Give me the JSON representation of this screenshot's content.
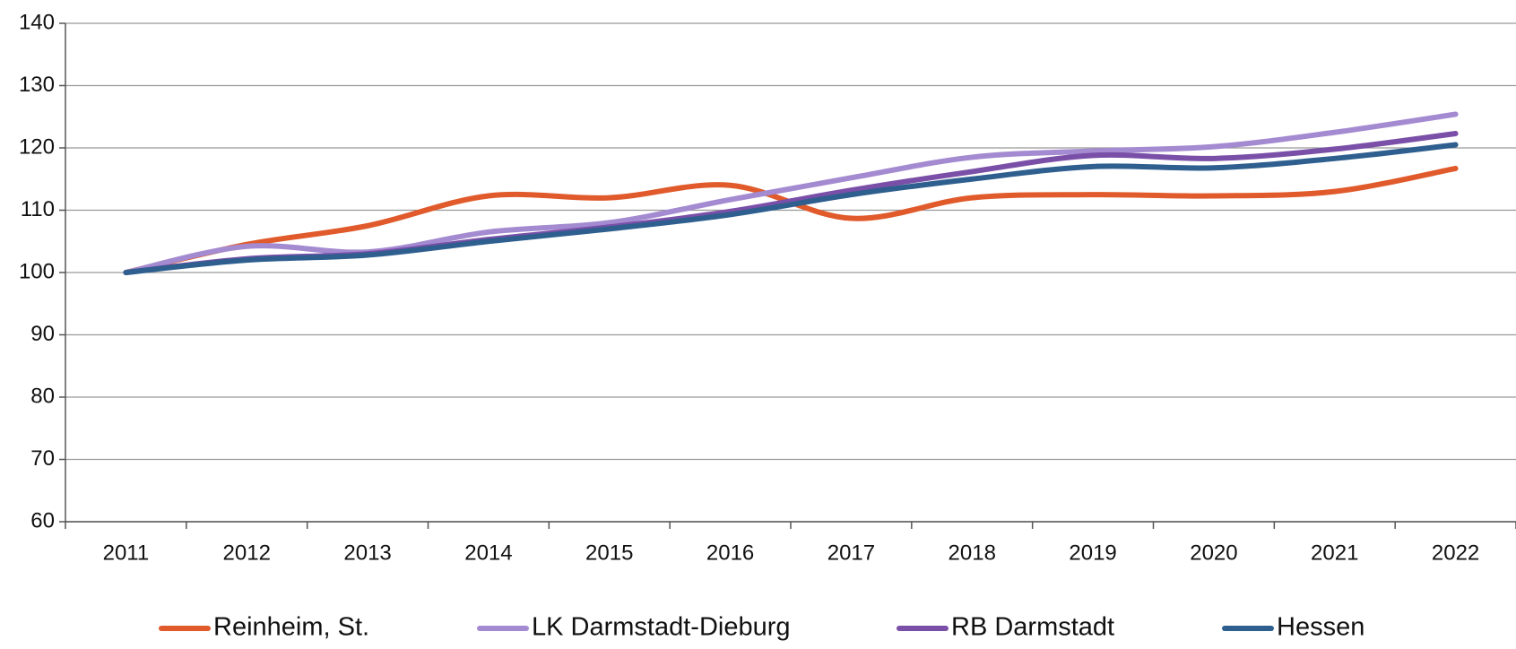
{
  "chart_data": {
    "type": "line",
    "categories": [
      "2011",
      "2012",
      "2013",
      "2014",
      "2015",
      "2016",
      "2017",
      "2018",
      "2019",
      "2020",
      "2021",
      "2022"
    ],
    "series": [
      {
        "name": "Reinheim, St.",
        "color": "#e05a2b",
        "values": [
          100,
          104.5,
          107.5,
          112.3,
          112,
          114,
          108.7,
          112,
          112.5,
          112.3,
          113,
          116.7
        ]
      },
      {
        "name": "LK Darmstadt-Dieburg",
        "color": "#a48ad0",
        "values": [
          100,
          104.2,
          103.3,
          106.5,
          108,
          111.7,
          115.2,
          118.5,
          119.5,
          120.2,
          122.5,
          125.4
        ]
      },
      {
        "name": "RB Darmstadt",
        "color": "#7a4fa8",
        "values": [
          100,
          102.2,
          103,
          105.3,
          107.3,
          109.8,
          113.2,
          116.2,
          118.8,
          118.3,
          119.8,
          122.3
        ]
      },
      {
        "name": "Hessen",
        "color": "#2e5f8f",
        "values": [
          100,
          102,
          102.8,
          105,
          107,
          109.3,
          112.5,
          115,
          117,
          116.8,
          118.3,
          120.5
        ]
      }
    ],
    "ylim": [
      60,
      140
    ],
    "yticks": [
      60,
      70,
      80,
      90,
      100,
      110,
      120,
      130,
      140
    ],
    "grid": true,
    "legend": "bottom"
  }
}
